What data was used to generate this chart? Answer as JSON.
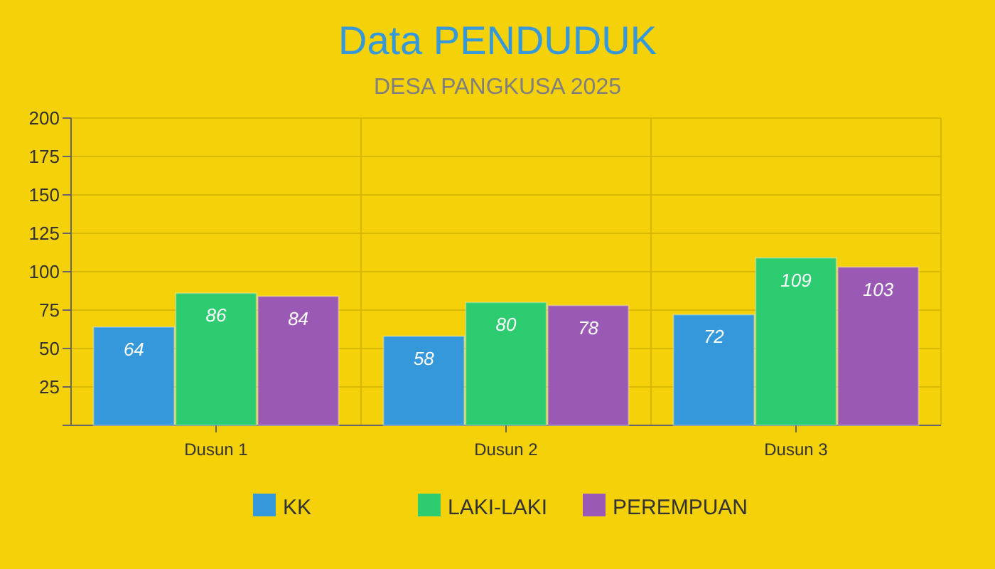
{
  "chart_data": {
    "type": "bar",
    "title": "Data PENDUDUK",
    "subtitle": "DESA PANGKUSA 2025",
    "categories": [
      "Dusun 1",
      "Dusun 2",
      "Dusun 3"
    ],
    "series": [
      {
        "name": "KK",
        "color": "#3498db",
        "values": [
          64,
          58,
          72
        ]
      },
      {
        "name": "LAKI-LAKI",
        "color": "#2ecc71",
        "values": [
          86,
          80,
          109
        ]
      },
      {
        "name": "PEREMPUAN",
        "color": "#9b59b6",
        "values": [
          84,
          78,
          103
        ]
      }
    ],
    "ylim": [
      0,
      200
    ],
    "yticks": [
      {
        "value": 0,
        "label": null
      },
      25,
      50,
      75,
      100,
      125,
      150,
      175,
      200
    ],
    "grid": true,
    "legend": "bottom",
    "data_labels": true
  }
}
